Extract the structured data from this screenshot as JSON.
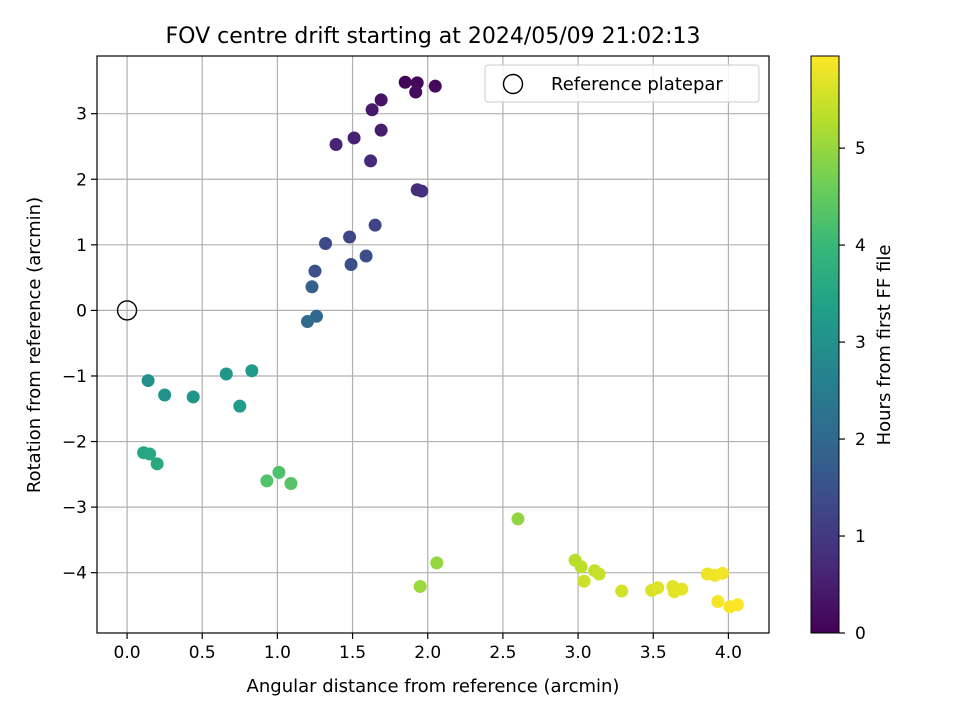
{
  "chart_data": {
    "type": "scatter",
    "title": "FOV centre drift starting at 2024/05/09 21:02:13",
    "xlabel": "Angular distance from reference (arcmin)",
    "ylabel": "Rotation from reference (arcmin)",
    "xlim": [
      -0.2,
      4.27
    ],
    "ylim": [
      -4.92,
      3.88
    ],
    "xticks": [
      0.0,
      0.5,
      1.0,
      1.5,
      2.0,
      2.5,
      3.0,
      3.5,
      4.0
    ],
    "xtick_labels": [
      "0.0",
      "0.5",
      "1.0",
      "1.5",
      "2.0",
      "2.5",
      "3.0",
      "3.5",
      "4.0"
    ],
    "yticks": [
      -4,
      -3,
      -2,
      -1,
      0,
      1,
      2,
      3
    ],
    "ytick_labels": [
      "−4",
      "−3",
      "−2",
      "−1",
      "0",
      "1",
      "2",
      "3"
    ],
    "grid": true,
    "legend": {
      "placement": "top-right",
      "entries": [
        "Reference platepar"
      ]
    },
    "reference_point": {
      "name": "Reference platepar",
      "x": 0.0,
      "y": 0.0,
      "marker": "open-circle"
    },
    "colorbar": {
      "label": "Hours from first FF file",
      "colormap": "viridis",
      "range": [
        0,
        5.95
      ],
      "ticks": [
        0,
        1,
        2,
        3,
        4,
        5
      ],
      "tick_labels": [
        "0",
        "1",
        "2",
        "3",
        "4",
        "5"
      ],
      "stops": [
        "#440154",
        "#482878",
        "#3e4989",
        "#31688e",
        "#26828e",
        "#1f9e89",
        "#35b779",
        "#6ece58",
        "#b5de2b",
        "#fde725"
      ]
    },
    "points": [
      {
        "x": 1.85,
        "y": 3.48,
        "c": 0.05
      },
      {
        "x": 1.93,
        "y": 3.47,
        "c": 0.1
      },
      {
        "x": 2.05,
        "y": 3.42,
        "c": 0.15
      },
      {
        "x": 1.92,
        "y": 3.33,
        "c": 0.2
      },
      {
        "x": 1.69,
        "y": 3.21,
        "c": 0.3
      },
      {
        "x": 1.63,
        "y": 3.06,
        "c": 0.4
      },
      {
        "x": 1.69,
        "y": 2.75,
        "c": 0.5
      },
      {
        "x": 1.51,
        "y": 2.63,
        "c": 0.55
      },
      {
        "x": 1.39,
        "y": 2.53,
        "c": 0.6
      },
      {
        "x": 1.62,
        "y": 2.28,
        "c": 0.7
      },
      {
        "x": 1.93,
        "y": 1.84,
        "c": 0.75
      },
      {
        "x": 1.96,
        "y": 1.82,
        "c": 0.8
      },
      {
        "x": 1.65,
        "y": 1.3,
        "c": 1.2
      },
      {
        "x": 1.48,
        "y": 1.12,
        "c": 1.3
      },
      {
        "x": 1.32,
        "y": 1.02,
        "c": 1.35
      },
      {
        "x": 1.59,
        "y": 0.83,
        "c": 1.4
      },
      {
        "x": 1.49,
        "y": 0.7,
        "c": 1.45
      },
      {
        "x": 1.25,
        "y": 0.6,
        "c": 1.5
      },
      {
        "x": 1.23,
        "y": 0.36,
        "c": 1.8
      },
      {
        "x": 1.26,
        "y": -0.09,
        "c": 2.0
      },
      {
        "x": 1.2,
        "y": -0.17,
        "c": 2.05
      },
      {
        "x": 0.14,
        "y": -1.07,
        "c": 3.0
      },
      {
        "x": 0.25,
        "y": -1.29,
        "c": 3.05
      },
      {
        "x": 0.44,
        "y": -1.32,
        "c": 3.1
      },
      {
        "x": 0.66,
        "y": -0.97,
        "c": 3.15
      },
      {
        "x": 0.83,
        "y": -0.92,
        "c": 3.2
      },
      {
        "x": 0.75,
        "y": -1.46,
        "c": 3.25
      },
      {
        "x": 0.11,
        "y": -2.17,
        "c": 3.5
      },
      {
        "x": 0.15,
        "y": -2.19,
        "c": 3.55
      },
      {
        "x": 0.2,
        "y": -2.34,
        "c": 3.6
      },
      {
        "x": 1.01,
        "y": -2.47,
        "c": 4.25
      },
      {
        "x": 0.93,
        "y": -2.6,
        "c": 4.3
      },
      {
        "x": 1.09,
        "y": -2.64,
        "c": 4.35
      },
      {
        "x": 2.6,
        "y": -3.18,
        "c": 4.95
      },
      {
        "x": 2.06,
        "y": -3.85,
        "c": 5.0
      },
      {
        "x": 1.95,
        "y": -4.21,
        "c": 5.05
      },
      {
        "x": 2.98,
        "y": -3.81,
        "c": 5.3
      },
      {
        "x": 3.02,
        "y": -3.91,
        "c": 5.35
      },
      {
        "x": 3.11,
        "y": -3.97,
        "c": 5.4
      },
      {
        "x": 3.14,
        "y": -4.02,
        "c": 5.45
      },
      {
        "x": 3.04,
        "y": -4.13,
        "c": 5.5
      },
      {
        "x": 3.29,
        "y": -4.28,
        "c": 5.55
      },
      {
        "x": 3.49,
        "y": -4.27,
        "c": 5.6
      },
      {
        "x": 3.53,
        "y": -4.23,
        "c": 5.65
      },
      {
        "x": 3.63,
        "y": -4.21,
        "c": 5.7
      },
      {
        "x": 3.64,
        "y": -4.29,
        "c": 5.72
      },
      {
        "x": 3.69,
        "y": -4.25,
        "c": 5.75
      },
      {
        "x": 3.86,
        "y": -4.02,
        "c": 5.8
      },
      {
        "x": 3.91,
        "y": -4.04,
        "c": 5.82
      },
      {
        "x": 3.96,
        "y": -4.01,
        "c": 5.85
      },
      {
        "x": 3.93,
        "y": -4.44,
        "c": 5.88
      },
      {
        "x": 4.01,
        "y": -4.52,
        "c": 5.9
      },
      {
        "x": 4.06,
        "y": -4.49,
        "c": 5.93
      }
    ]
  }
}
